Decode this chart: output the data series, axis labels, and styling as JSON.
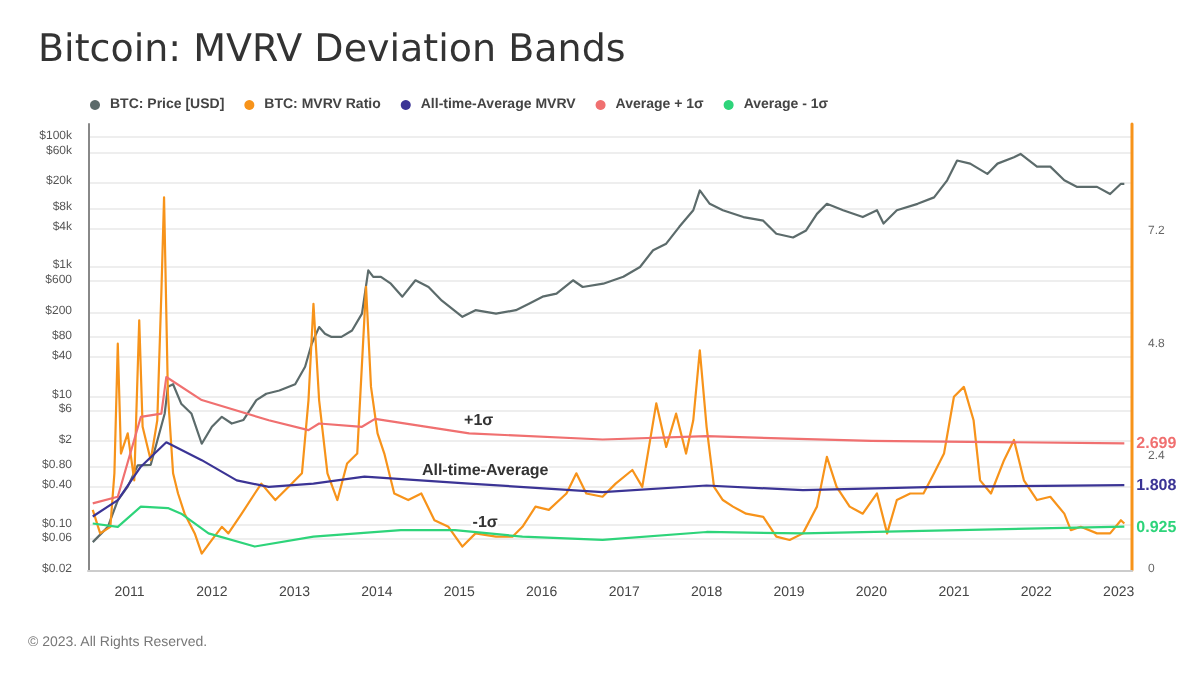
{
  "chart_data": {
    "type": "line",
    "title": "Bitcoin: MVRV Deviation Bands",
    "legend": "top left",
    "grid": "y",
    "marker": "none",
    "line_style": "solid",
    "xlim": [
      "2010-07",
      "2023-03"
    ],
    "xticks": [
      "2011",
      "2012",
      "2013",
      "2014",
      "2015",
      "2016",
      "2017",
      "2018",
      "2019",
      "2020",
      "2021",
      "2022",
      "2023"
    ],
    "log": "y",
    "ylim": [
      0.02,
      160000
    ],
    "yticks": [
      {
        "value": 0.02,
        "label": "$0.02"
      },
      {
        "value": 0.06,
        "label": "$0.06"
      },
      {
        "value": 0.1,
        "label": "$0.10"
      },
      {
        "value": 0.4,
        "label": "$0.40"
      },
      {
        "value": 0.8,
        "label": "$0.80"
      },
      {
        "value": 2,
        "label": "$2"
      },
      {
        "value": 6,
        "label": "$6"
      },
      {
        "value": 10,
        "label": "$10"
      },
      {
        "value": 40,
        "label": "$40"
      },
      {
        "value": 80,
        "label": "$80"
      },
      {
        "value": 200,
        "label": "$200"
      },
      {
        "value": 600,
        "label": "$600"
      },
      {
        "value": 1000,
        "label": "$1k"
      },
      {
        "value": 4000,
        "label": "$4k"
      },
      {
        "value": 8000,
        "label": "$8k"
      },
      {
        "value": 20000,
        "label": "$20k"
      },
      {
        "value": 60000,
        "label": "$60k"
      },
      {
        "value": 100000,
        "label": "$100k"
      }
    ],
    "y2lim": [
      0,
      9.5
    ],
    "y2ticks": [
      0,
      2.4,
      4.8,
      7.2
    ],
    "series": [
      {
        "name": "BTC: Price [USD]",
        "color": "#5c6b6b",
        "x": [
          "2010-07-22",
          "2010-09-27",
          "2010-11-10",
          "2010-12-24",
          "2011-02-06",
          "2011-04-05",
          "2011-06-06",
          "2011-06-20",
          "2011-07-13",
          "2011-08-18",
          "2011-10-02",
          "2011-11-17",
          "2012-01-01",
          "2012-02-14",
          "2012-03-29",
          "2012-05-20",
          "2012-07-16",
          "2012-08-29",
          "2012-10-26",
          "2013-01-04",
          "2013-02-17",
          "2013-03-18",
          "2013-04-20",
          "2013-05-16",
          "2013-06-14",
          "2013-07-28",
          "2013-09-13",
          "2013-10-27",
          "2013-11-24",
          "2013-12-16",
          "2014-01-19",
          "2014-03-04",
          "2014-04-24",
          "2014-06-21",
          "2014-08-18",
          "2014-10-16",
          "2015-01-15",
          "2015-03-14",
          "2015-06-13",
          "2015-09-09",
          "2015-11-06",
          "2016-01-05",
          "2016-03-07",
          "2016-05-19",
          "2016-07-01",
          "2016-09-30",
          "2016-12-28",
          "2017-03-12",
          "2017-05-09",
          "2017-07-06",
          "2017-09-02",
          "2017-11-03",
          "2017-12-02",
          "2018-01-15",
          "2018-03-14",
          "2018-06-13",
          "2018-09-09",
          "2018-11-06",
          "2019-01-19",
          "2019-03-18",
          "2019-05-05",
          "2019-06-18",
          "2019-08-29",
          "2019-11-24",
          "2020-01-26",
          "2020-02-24",
          "2020-04-23",
          "2020-07-24",
          "2020-10-05",
          "2020-12-02",
          "2021-01-15",
          "2021-03-14",
          "2021-05-29",
          "2021-07-13",
          "2021-09-24",
          "2021-10-23",
          "2022-01-04",
          "2022-03-04",
          "2022-05-05",
          "2022-07-01",
          "2022-09-27",
          "2022-11-24",
          "2023-01-11",
          "2023-01-26"
        ],
        "values": [
          0.054,
          0.093,
          0.24,
          0.39,
          0.83,
          0.85,
          5.3,
          13.7,
          15,
          7.5,
          5.3,
          1.8,
          3.3,
          4.7,
          3.7,
          4.2,
          8.5,
          10.7,
          12,
          15,
          28,
          63,
          115,
          91,
          81,
          81,
          102,
          186,
          870,
          690,
          690,
          540,
          340,
          610,
          480,
          295,
          166,
          210,
          186,
          210,
          265,
          340,
          380,
          610,
          480,
          540,
          690,
          980,
          1780,
          2250,
          4100,
          7400,
          15000,
          9300,
          7400,
          5800,
          5100,
          3200,
          2800,
          3600,
          6500,
          9300,
          7400,
          5800,
          7400,
          4600,
          7400,
          9300,
          11700,
          21500,
          43500,
          39000,
          27000,
          39000,
          49000,
          55000,
          35000,
          35000,
          21500,
          17000,
          17000,
          13200,
          19000,
          19000
        ]
      },
      {
        "name": "BTC: MVRV Ratio",
        "color": "#f7931a",
        "axis": "y2",
        "x": [
          "2010-07-22",
          "2010-08-24",
          "2010-10-08",
          "2010-10-26",
          "2010-11-10",
          "2010-11-24",
          "2010-12-24",
          "2011-01-22",
          "2011-02-13",
          "2011-02-28",
          "2011-04-05",
          "2011-05-04",
          "2011-05-22",
          "2011-06-03",
          "2011-06-20",
          "2011-07-13",
          "2011-08-04",
          "2011-09-02",
          "2011-10-17",
          "2011-11-17",
          "2012-01-01",
          "2012-02-14",
          "2012-03-14",
          "2012-05-12",
          "2012-07-09",
          "2012-08-07",
          "2012-10-08",
          "2012-12-05",
          "2013-02-03",
          "2013-03-04",
          "2013-03-26",
          "2013-04-20",
          "2013-05-27",
          "2013-07-10",
          "2013-08-22",
          "2013-10-06",
          "2013-11-14",
          "2013-12-06",
          "2014-01-04",
          "2014-02-03",
          "2014-03-19",
          "2014-05-20",
          "2014-07-17",
          "2014-09-13",
          "2014-11-14",
          "2015-01-15",
          "2015-03-14",
          "2015-06-13",
          "2015-08-25",
          "2015-10-08",
          "2015-12-05",
          "2016-02-02",
          "2016-04-20",
          "2016-06-03",
          "2016-07-17",
          "2016-09-27",
          "2016-11-24",
          "2017-02-06",
          "2017-03-22",
          "2017-05-23",
          "2017-07-06",
          "2017-08-19",
          "2017-10-02",
          "2017-11-03",
          "2017-12-02",
          "2018-01-01",
          "2018-02-03",
          "2018-03-14",
          "2018-04-28",
          "2018-06-25",
          "2018-09-09",
          "2018-11-06",
          "2019-01-04",
          "2019-03-04",
          "2019-05-05",
          "2019-06-18",
          "2019-07-31",
          "2019-09-27",
          "2019-11-24",
          "2020-01-26",
          "2020-03-11",
          "2020-04-23",
          "2020-06-21",
          "2020-08-19",
          "2020-10-05",
          "2020-11-18",
          "2021-01-01",
          "2021-02-14",
          "2021-03-29",
          "2021-04-27",
          "2021-06-14",
          "2021-08-11",
          "2021-09-24",
          "2021-11-07",
          "2022-01-04",
          "2022-03-04",
          "2022-05-05",
          "2022-06-03",
          "2022-07-17",
          "2022-09-27",
          "2022-11-24",
          "2023-01-11",
          "2023-01-26"
        ],
        "values": [
          1.28,
          0.78,
          0.92,
          2.06,
          4.82,
          2.48,
          2.91,
          1.91,
          5.32,
          3.05,
          2.34,
          3.19,
          5.89,
          7.94,
          3.76,
          2.06,
          1.63,
          1.2,
          0.78,
          0.35,
          0.64,
          0.92,
          0.78,
          1.2,
          1.63,
          1.84,
          1.49,
          1.77,
          2.06,
          3.62,
          5.67,
          3.62,
          2.06,
          1.49,
          2.27,
          2.48,
          6.03,
          3.9,
          2.91,
          2.48,
          1.63,
          1.49,
          1.63,
          1.06,
          0.92,
          0.5,
          0.78,
          0.71,
          0.71,
          0.92,
          1.35,
          1.28,
          1.63,
          2.06,
          1.63,
          1.56,
          1.84,
          2.13,
          1.77,
          3.55,
          2.62,
          3.33,
          2.48,
          3.19,
          4.68,
          3.05,
          1.77,
          1.49,
          1.35,
          1.2,
          1.13,
          0.71,
          0.64,
          0.78,
          1.35,
          2.41,
          1.77,
          1.35,
          1.2,
          1.63,
          0.78,
          1.49,
          1.63,
          1.63,
          2.06,
          2.48,
          3.69,
          3.9,
          3.19,
          1.91,
          1.63,
          2.34,
          2.77,
          1.91,
          1.49,
          1.56,
          1.2,
          0.85,
          0.92,
          0.78,
          0.78,
          1.06,
          0.99
        ]
      },
      {
        "name": "All-time-Average MVRV",
        "color": "#3b3495",
        "axis": "y2",
        "x": [
          "2010-07-22",
          "2010-11-10",
          "2011-02-20",
          "2011-06-13",
          "2011-11-17",
          "2012-04-20",
          "2012-09-09",
          "2013-03-26",
          "2013-11-07",
          "2015-02-14",
          "2016-09-27",
          "2018-01-01",
          "2019-03-04",
          "2020-10-20",
          "2023-01-26"
        ],
        "values": [
          1.14,
          1.49,
          2.2,
          2.72,
          2.34,
          1.91,
          1.77,
          1.84,
          1.99,
          1.84,
          1.66,
          1.8,
          1.7,
          1.77,
          1.808
        ],
        "value_labels": [
          null,
          null,
          null,
          null,
          null,
          null,
          null,
          null,
          null,
          null,
          null,
          null,
          null,
          null,
          "1.808"
        ]
      },
      {
        "name": "Average + 1σ",
        "color": "#f07070",
        "axis": "y2",
        "x": [
          "2010-07-22",
          "2010-11-10",
          "2011-02-20",
          "2011-05-22",
          "2011-06-13",
          "2011-11-17",
          "2012-09-09",
          "2013-03-04",
          "2013-04-20",
          "2013-10-27",
          "2013-12-24",
          "2015-02-14",
          "2016-09-27",
          "2018-01-01",
          "2020-01-01",
          "2023-01-26"
        ],
        "values": [
          1.42,
          1.56,
          3.26,
          3.33,
          4.11,
          3.62,
          3.19,
          2.98,
          3.12,
          3.05,
          3.22,
          2.91,
          2.78,
          2.85,
          2.75,
          2.699
        ],
        "value_labels": [
          null,
          null,
          null,
          null,
          null,
          null,
          null,
          null,
          null,
          null,
          null,
          null,
          null,
          null,
          null,
          "2.699"
        ]
      },
      {
        "name": "Average - 1σ",
        "color": "#2ed47a",
        "axis": "y2",
        "x": [
          "2010-07-22",
          "2010-11-10",
          "2011-02-20",
          "2011-06-20",
          "2011-08-18",
          "2011-12-17",
          "2012-07-09",
          "2013-03-26",
          "2014-04-17",
          "2014-12-13",
          "2015-03-28",
          "2015-10-08",
          "2016-09-27",
          "2018-01-01",
          "2019-03-04",
          "2023-01-26"
        ],
        "values": [
          0.99,
          0.92,
          1.35,
          1.32,
          1.2,
          0.78,
          0.5,
          0.71,
          0.85,
          0.85,
          0.8,
          0.71,
          0.64,
          0.81,
          0.78,
          0.925
        ],
        "value_labels": [
          null,
          null,
          null,
          null,
          null,
          null,
          null,
          null,
          null,
          null,
          null,
          null,
          null,
          null,
          null,
          "0.925"
        ]
      }
    ],
    "annotations": [
      {
        "text": "+1σ",
        "x": "2015-03-28",
        "y": 2.9
      },
      {
        "text": "All-time-Average",
        "x": "2015-04-26",
        "y": 1.84
      },
      "-1σ",
      "© 2023. All Rights Reserved."
    ]
  }
}
